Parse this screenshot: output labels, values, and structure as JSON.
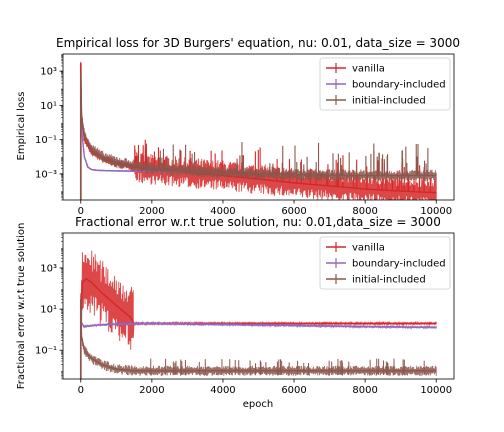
{
  "chart_data": [
    {
      "type": "line",
      "title": "Empirical loss for 3D Burgers' equation, nu: 0.01, data_size = 3000",
      "xlabel": "",
      "ylabel": "Empirical loss",
      "yscale": "log",
      "xlim": [
        -500,
        10500
      ],
      "ylim": [
        3e-05,
        10000.0
      ],
      "xticks": [
        0,
        2000,
        4000,
        6000,
        8000,
        10000
      ],
      "xtick_labels": [
        "0",
        "2000",
        "4000",
        "6000",
        "8000",
        "10000"
      ],
      "yticks": [
        0.001,
        0.1,
        10,
        1000
      ],
      "ytick_labels": [
        "10⁻³",
        "10⁻¹",
        "10¹",
        "10³"
      ],
      "legend_position": "upper right",
      "series": [
        {
          "name": "vanilla",
          "color": "#d62728",
          "x": [
            0,
            20,
            100,
            300,
            600,
            1000,
            1500,
            2000,
            3000,
            4000,
            5000,
            6000,
            7000,
            8000,
            9000,
            10000
          ],
          "y": [
            3000,
            3,
            0.1,
            0.02,
            0.008,
            0.004,
            0.0025,
            0.0018,
            0.0012,
            0.0008,
            0.0005,
            0.0003,
            0.0002,
            0.00013,
            0.0001,
            8e-05
          ]
        },
        {
          "name": "boundary-included",
          "color": "#9467bd",
          "x": [
            0,
            20,
            100,
            200,
            300,
            500,
            1000,
            2000,
            3000
          ],
          "y": [
            100,
            0.5,
            0.01,
            0.0025,
            0.0018,
            0.0016,
            0.0015,
            0.0014,
            0.0013
          ]
        },
        {
          "name": "initial-included",
          "color": "#8c564b",
          "x": [
            0,
            20,
            100,
            300,
            600,
            1000,
            2000,
            4000,
            6000,
            8000,
            10000
          ],
          "y": [
            500,
            2,
            0.2,
            0.03,
            0.01,
            0.005,
            0.002,
            0.0012,
            0.0009,
            0.0008,
            0.0008
          ]
        }
      ]
    },
    {
      "type": "line",
      "title": "Fractional error w.r.t true solution, nu: 0.01,data_size = 3000",
      "xlabel": "epoch",
      "ylabel": "Fractional error w.r.t true solution",
      "yscale": "log",
      "xlim": [
        -500,
        10500
      ],
      "ylim": [
        0.004,
        50000
      ],
      "xticks": [
        0,
        2000,
        4000,
        6000,
        8000,
        10000
      ],
      "xtick_labels": [
        "0",
        "2000",
        "4000",
        "6000",
        "8000",
        "10000"
      ],
      "yticks": [
        0.1,
        10,
        1000
      ],
      "ytick_labels": [
        "10⁻¹",
        "10¹",
        "10³"
      ],
      "legend_position": "upper right",
      "series": [
        {
          "name": "vanilla",
          "color": "#d62728",
          "x": [
            0,
            50,
            150,
            300,
            600,
            1000,
            1400,
            1500,
            2000,
            4000,
            6000,
            8000,
            10000
          ],
          "y": [
            5,
            200,
            300,
            200,
            60,
            15,
            4,
            2,
            2,
            2,
            2,
            2,
            2
          ]
        },
        {
          "name": "boundary-included",
          "color": "#9467bd",
          "x": [
            0,
            20,
            100,
            300,
            1000,
            2000,
            4000,
            6000,
            8000,
            10000
          ],
          "y": [
            10,
            2,
            1.4,
            1.6,
            1.9,
            2.0,
            1.8,
            1.6,
            1.4,
            1.3
          ]
        },
        {
          "name": "initial-included",
          "color": "#8c564b",
          "x": [
            0,
            20,
            100,
            300,
            600,
            1000,
            1500,
            2000,
            4000,
            6000,
            8000,
            10000
          ],
          "y": [
            30,
            0.5,
            0.1,
            0.04,
            0.02,
            0.012,
            0.01,
            0.01,
            0.01,
            0.01,
            0.01,
            0.01
          ]
        }
      ]
    }
  ]
}
